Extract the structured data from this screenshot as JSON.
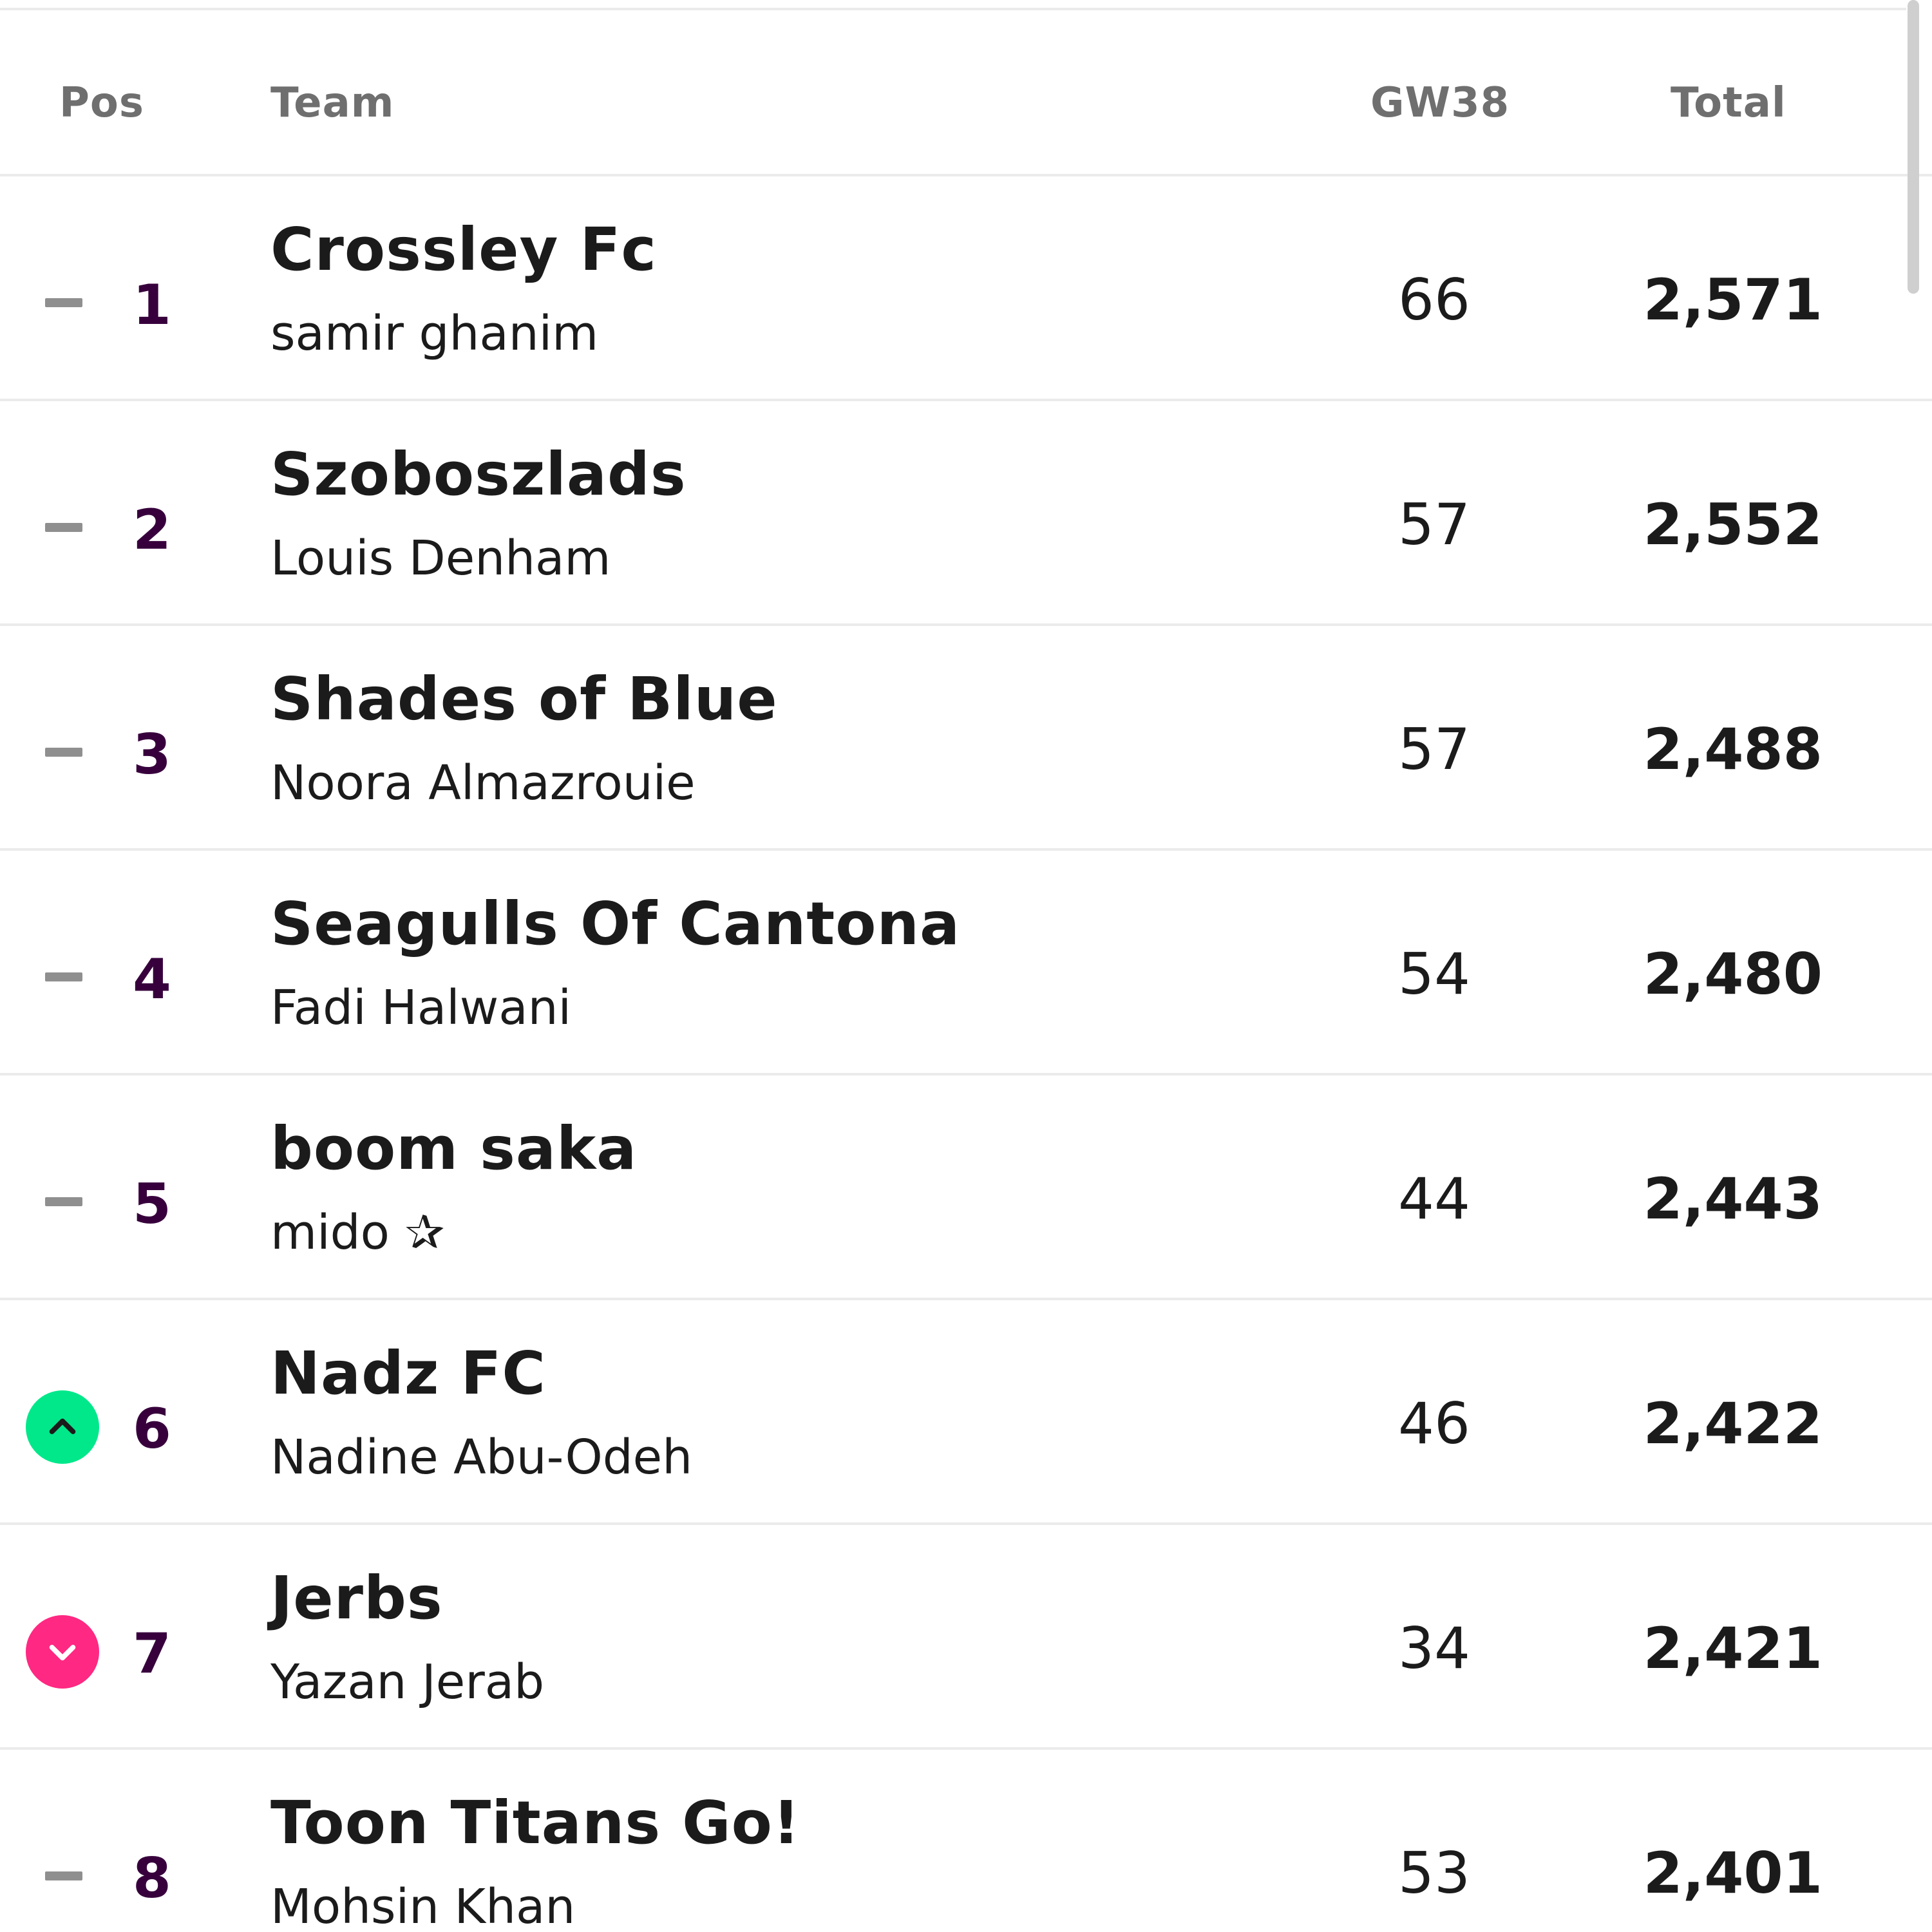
{
  "columns": {
    "pos": "Pos",
    "team": "Team",
    "gameweek": "GW38",
    "total": "Total"
  },
  "colors": {
    "rank_text": "#37003c",
    "up": "#00e88a",
    "down": "#ff2882",
    "same": "#8f8f8f"
  },
  "rows": [
    {
      "rank": "1",
      "movement": "same",
      "team": "Crossley Fc",
      "manager": "samir ghanim",
      "gw": "66",
      "total": "2,571"
    },
    {
      "rank": "2",
      "movement": "same",
      "team": "Szoboszlads",
      "manager": "Louis Denham",
      "gw": "57",
      "total": "2,552"
    },
    {
      "rank": "3",
      "movement": "same",
      "team": "Shades of Blue",
      "manager": "Noora Almazrouie",
      "gw": "57",
      "total": "2,488"
    },
    {
      "rank": "4",
      "movement": "same",
      "team": "Seagulls Of Cantona",
      "manager": "Fadi Halwani",
      "gw": "54",
      "total": "2,480"
    },
    {
      "rank": "5",
      "movement": "same",
      "team": "boom saka",
      "manager": "mido ✰",
      "gw": "44",
      "total": "2,443"
    },
    {
      "rank": "6",
      "movement": "up",
      "team": "Nadz FC",
      "manager": "Nadine Abu-Odeh",
      "gw": "46",
      "total": "2,422"
    },
    {
      "rank": "7",
      "movement": "down",
      "team": "Jerbs",
      "manager": "Yazan Jerab",
      "gw": "34",
      "total": "2,421"
    },
    {
      "rank": "8",
      "movement": "same",
      "team": "Toon Titans Go!",
      "manager": "Mohsin Khan",
      "gw": "53",
      "total": "2,401"
    }
  ]
}
